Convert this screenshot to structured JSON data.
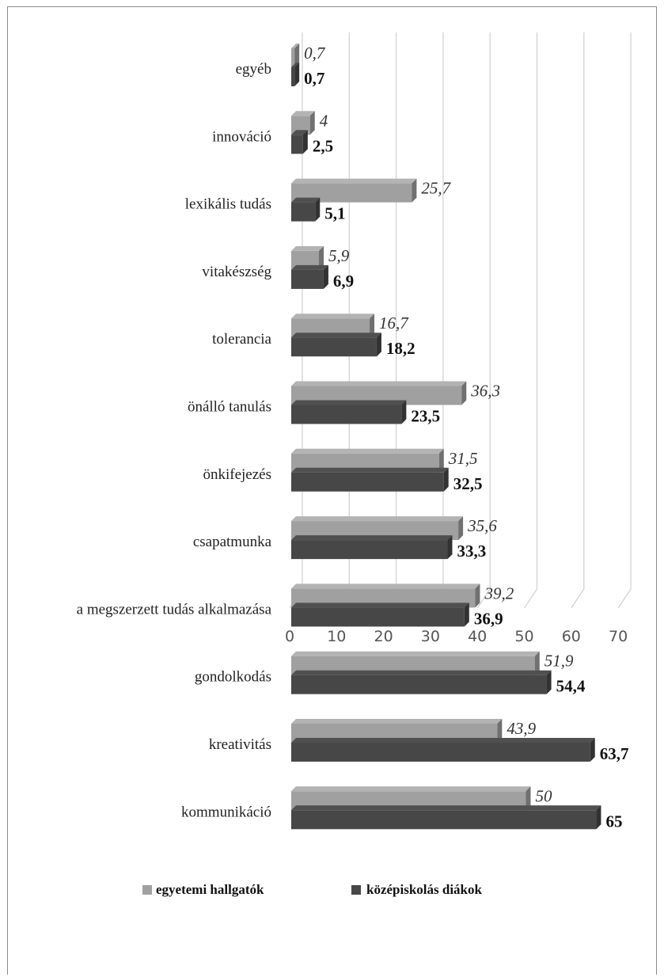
{
  "chart_data": {
    "type": "bar",
    "orientation": "horizontal",
    "categories": [
      "egyéb",
      "innováció",
      "lexikális tudás",
      "vitakészség",
      "tolerancia",
      "önálló tanulás",
      "önkifejezés",
      "csapatmunka",
      "a megszerzett tudás alkalmazása",
      "gondolkodás",
      "kreativitás",
      "kommunikáció"
    ],
    "series": [
      {
        "name": "egyetemi hallgatók",
        "values": [
          0.7,
          4,
          25.7,
          5.9,
          16.7,
          36.3,
          31.5,
          35.6,
          39.2,
          51.9,
          43.9,
          50
        ],
        "labels": [
          "0,7",
          "4",
          "25,7",
          "5,9",
          "16,7",
          "36,3",
          "31,5",
          "35,6",
          "39,2",
          "51,9",
          "43,9",
          "50"
        ],
        "color": "#a0a0a0",
        "label_style": "italic"
      },
      {
        "name": "középiskolás diákok",
        "values": [
          0.7,
          2.5,
          5.1,
          6.9,
          18.2,
          23.5,
          32.5,
          33.3,
          36.9,
          54.4,
          63.7,
          65
        ],
        "labels": [
          "0,7",
          "2,5",
          "5,1",
          "6,9",
          "18,2",
          "23,5",
          "32,5",
          "33,3",
          "36,9",
          "54,4",
          "63,7",
          "65"
        ],
        "color": "#474747",
        "label_style": "bold"
      }
    ],
    "x_ticks": [
      "0",
      "10",
      "20",
      "30",
      "40",
      "50",
      "60",
      "70"
    ],
    "xlim": [
      0,
      70
    ],
    "grid": true,
    "style": "3d",
    "legend_position": "bottom"
  }
}
